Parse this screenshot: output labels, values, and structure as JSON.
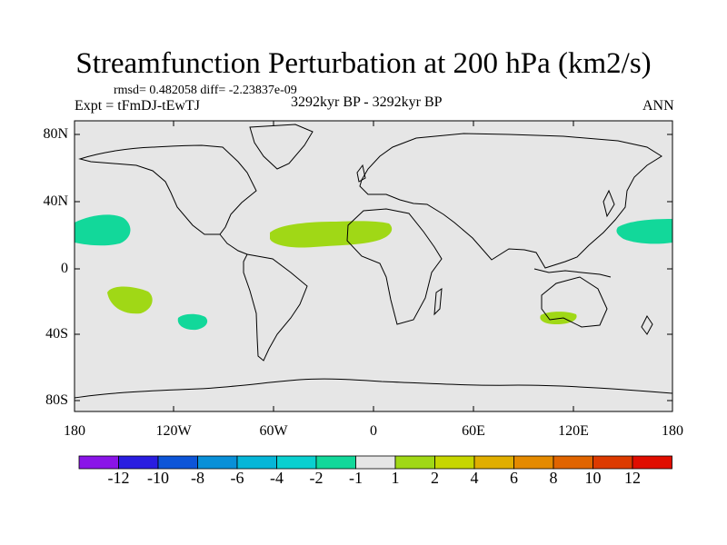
{
  "title": "Streamfunction Perturbation at 200 hPa (km2/s)",
  "stats": "rmsd= 0.482058 diff= -2.23837e-09",
  "experiment": "Expt = tFmDJ-tEwTJ",
  "time_range": "3292kyr BP - 3292kyr BP",
  "season": "ANN",
  "map": {
    "projection": "cylindrical equidistant",
    "lon_range": [
      -180,
      180
    ],
    "lat_range": [
      -90,
      90
    ],
    "lat_ticks": [
      "80N",
      "40N",
      "0",
      "40S",
      "80S"
    ],
    "lon_ticks": [
      "180",
      "120W",
      "60W",
      "0",
      "60E",
      "120E",
      "180"
    ],
    "background_color": "#e6e6e6"
  },
  "anomaly_regions": [
    {
      "name": "central-pacific-north-negative",
      "value_bin": "-2 to -1",
      "color": "#12d89a"
    },
    {
      "name": "west-pacific-north-negative",
      "value_bin": "-2 to -1",
      "color": "#12d89a"
    },
    {
      "name": "south-pacific-negative",
      "value_bin": "-2 to -1",
      "color": "#12d89a"
    },
    {
      "name": "south-pacific-positive",
      "value_bin": "1 to 2",
      "color": "#a0d816"
    },
    {
      "name": "north-atlantic-africa-positive",
      "value_bin": "1 to 2",
      "color": "#a0d816"
    },
    {
      "name": "australia-positive",
      "value_bin": "1 to 2",
      "color": "#a0d816"
    }
  ],
  "colorbar": {
    "labels": [
      "-12",
      "-10",
      "-8",
      "-6",
      "-4",
      "-2",
      "-1",
      "1",
      "2",
      "4",
      "6",
      "8",
      "10",
      "12"
    ],
    "colors": [
      "#8a14e8",
      "#2a1de0",
      "#0d55d8",
      "#0990d8",
      "#06b6d8",
      "#0ad0d0",
      "#12d89a",
      "#e6e6e6",
      "#a0d816",
      "#c6d600",
      "#e0ae00",
      "#e48a00",
      "#e06400",
      "#dc3a00",
      "#e00d00"
    ]
  }
}
